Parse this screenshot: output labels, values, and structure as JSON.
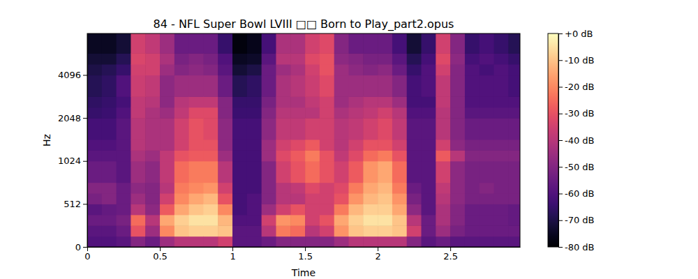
{
  "chart_data": {
    "type": "heatmap",
    "title": "84 - NFL Super Bowl LVIII □□ Born to Play_part2.opus",
    "x_label": "Time",
    "y_label": "Hz",
    "xlim": [
      0,
      2.98
    ],
    "xticks": [
      0,
      0.5,
      1,
      1.5,
      2,
      2.5
    ],
    "ylim": [
      0,
      8000
    ],
    "yticks": [
      0,
      512,
      1024,
      2048,
      4096
    ],
    "log": "y",
    "color": "magma",
    "times": [
      0,
      0.1,
      0.2,
      0.3,
      0.4,
      0.5,
      0.6,
      0.7,
      0.8,
      0.9,
      1.0,
      1.1,
      1.2,
      1.3,
      1.4,
      1.5,
      1.6,
      1.7,
      1.8,
      1.9,
      2.0,
      2.1,
      2.2,
      2.3,
      2.4,
      2.5,
      2.6,
      2.7,
      2.8,
      2.9,
      3.0
    ],
    "freqs": [
      0,
      128,
      256,
      384,
      512,
      640,
      768,
      1024,
      1280,
      1536,
      2048,
      2560,
      3072,
      4096,
      5120,
      6144,
      8000
    ],
    "z": [
      [
        -60,
        -58,
        -55,
        -58,
        -52,
        -50,
        -55,
        -58,
        -60,
        -62,
        -65,
        -66,
        -68,
        -70,
        -72,
        -75
      ],
      [
        -60,
        -58,
        -55,
        -56,
        -50,
        -50,
        -55,
        -58,
        -60,
        -62,
        -64,
        -65,
        -66,
        -68,
        -72,
        -75
      ],
      [
        -58,
        -55,
        -52,
        -55,
        -55,
        -55,
        -58,
        -58,
        -58,
        -58,
        -60,
        -62,
        -60,
        -65,
        -68,
        -72
      ],
      [
        -50,
        -30,
        -25,
        -40,
        -45,
        -48,
        -45,
        -42,
        -40,
        -40,
        -38,
        -38,
        -36,
        -35,
        -33,
        -35
      ],
      [
        -55,
        -45,
        -40,
        -48,
        -50,
        -50,
        -48,
        -45,
        -42,
        -42,
        -42,
        -40,
        -38,
        -35,
        -35,
        -38
      ],
      [
        -45,
        -20,
        -15,
        -28,
        -35,
        -40,
        -38,
        -38,
        -42,
        -42,
        -45,
        -48,
        -48,
        -45,
        -42,
        -45
      ],
      [
        -40,
        -10,
        -8,
        -15,
        -20,
        -22,
        -25,
        -30,
        -35,
        -35,
        -38,
        -40,
        -45,
        -50,
        -52,
        -55
      ],
      [
        -40,
        -8,
        -5,
        -10,
        -15,
        -20,
        -22,
        -28,
        -30,
        -30,
        -32,
        -38,
        -45,
        -48,
        -50,
        -55
      ],
      [
        -40,
        -8,
        -5,
        -8,
        -12,
        -18,
        -22,
        -28,
        -30,
        -32,
        -32,
        -38,
        -45,
        -50,
        -52,
        -55
      ],
      [
        -35,
        -10,
        -12,
        -20,
        -30,
        -35,
        -40,
        -45,
        -48,
        -48,
        -50,
        -50,
        -55,
        -58,
        -60,
        -65
      ],
      [
        -58,
        -58,
        -60,
        -62,
        -62,
        -62,
        -62,
        -62,
        -62,
        -62,
        -64,
        -65,
        -68,
        -72,
        -75,
        -78
      ],
      [
        -58,
        -58,
        -60,
        -60,
        -60,
        -62,
        -62,
        -62,
        -62,
        -62,
        -64,
        -65,
        -66,
        -70,
        -74,
        -76
      ],
      [
        -55,
        -40,
        -35,
        -45,
        -50,
        -50,
        -50,
        -45,
        -45,
        -48,
        -50,
        -52,
        -55,
        -55,
        -58,
        -62
      ],
      [
        -50,
        -22,
        -18,
        -35,
        -40,
        -40,
        -35,
        -32,
        -35,
        -38,
        -40,
        -42,
        -42,
        -45,
        -40,
        -42
      ],
      [
        -50,
        -25,
        -20,
        -30,
        -40,
        -38,
        -30,
        -28,
        -32,
        -38,
        -40,
        -42,
        -40,
        -42,
        -40,
        -42
      ],
      [
        -50,
        -40,
        -35,
        -35,
        -35,
        -32,
        -25,
        -22,
        -28,
        -35,
        -40,
        -38,
        -36,
        -35,
        -32,
        -35
      ],
      [
        -50,
        -35,
        -30,
        -35,
        -35,
        -35,
        -30,
        -30,
        -35,
        -35,
        -35,
        -35,
        -32,
        -30,
        -30,
        -32
      ],
      [
        -45,
        -18,
        -15,
        -22,
        -30,
        -32,
        -35,
        -38,
        -40,
        -40,
        -42,
        -45,
        -45,
        -45,
        -48,
        -50
      ],
      [
        -40,
        -10,
        -8,
        -12,
        -18,
        -22,
        -28,
        -32,
        -35,
        -38,
        -40,
        -42,
        -45,
        -48,
        -50,
        -55
      ],
      [
        -40,
        -8,
        -5,
        -8,
        -12,
        -15,
        -18,
        -25,
        -30,
        -35,
        -38,
        -40,
        -45,
        -50,
        -52,
        -55
      ],
      [
        -40,
        -8,
        -5,
        -8,
        -10,
        -12,
        -15,
        -22,
        -30,
        -32,
        -35,
        -40,
        -45,
        -48,
        -52,
        -55
      ],
      [
        -40,
        -10,
        -10,
        -15,
        -18,
        -22,
        -25,
        -30,
        -35,
        -38,
        -40,
        -45,
        -50,
        -55,
        -58,
        -62
      ],
      [
        -50,
        -35,
        -40,
        -48,
        -52,
        -55,
        -58,
        -58,
        -58,
        -58,
        -60,
        -62,
        -62,
        -65,
        -68,
        -72
      ],
      [
        -58,
        -55,
        -55,
        -58,
        -58,
        -58,
        -58,
        -58,
        -58,
        -58,
        -60,
        -62,
        -60,
        -60,
        -62,
        -65
      ],
      [
        -55,
        -45,
        -42,
        -42,
        -40,
        -38,
        -35,
        -28,
        -35,
        -40,
        -40,
        -38,
        -38,
        -35,
        -32,
        -35
      ],
      [
        -58,
        -52,
        -50,
        -50,
        -48,
        -48,
        -48,
        -40,
        -48,
        -50,
        -50,
        -50,
        -50,
        -50,
        -48,
        -50
      ],
      [
        -58,
        -55,
        -55,
        -55,
        -52,
        -52,
        -52,
        -50,
        -52,
        -55,
        -58,
        -60,
        -60,
        -60,
        -62,
        -65
      ],
      [
        -58,
        -55,
        -55,
        -55,
        -52,
        -50,
        -52,
        -50,
        -52,
        -55,
        -58,
        -60,
        -60,
        -62,
        -60,
        -62
      ],
      [
        -58,
        -55,
        -55,
        -55,
        -52,
        -52,
        -52,
        -50,
        -52,
        -55,
        -58,
        -60,
        -60,
        -60,
        -62,
        -65
      ],
      [
        -58,
        -55,
        -56,
        -56,
        -52,
        -52,
        -52,
        -50,
        -52,
        -55,
        -58,
        -60,
        -62,
        -62,
        -65,
        -68
      ]
    ],
    "colorbar_range": [
      -80,
      0
    ],
    "colorbar_ticks": [
      {
        "value": 0,
        "label": "+0 dB"
      },
      {
        "value": -10,
        "label": "-10 dB"
      },
      {
        "value": -20,
        "label": "-20 dB"
      },
      {
        "value": -30,
        "label": "-30 dB"
      },
      {
        "value": -40,
        "label": "-40 dB"
      },
      {
        "value": -50,
        "label": "-50 dB"
      },
      {
        "value": -60,
        "label": "-60 dB"
      },
      {
        "value": -70,
        "label": "-70 dB"
      },
      {
        "value": -80,
        "label": "-80 dB"
      }
    ]
  }
}
